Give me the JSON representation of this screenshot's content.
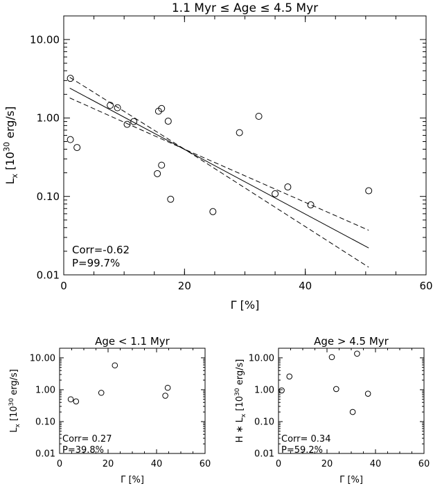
{
  "chart_data": [
    {
      "type": "scatter",
      "title": "1.1 Myr ≤ Age ≤ 4.5 Myr",
      "xlabel": "Γ [%]",
      "ylabel_main": "L",
      "ylabel_sub": "x",
      "ylabel_units_pre": "[10",
      "ylabel_units_sup": "30",
      "ylabel_units_post": " erg/s]",
      "xlim": [
        0,
        60
      ],
      "ylim": [
        0.01,
        20
      ],
      "yscale": "log",
      "xticks": [
        0,
        20,
        40,
        60
      ],
      "xtick_labels": [
        "0",
        "20",
        "40",
        "60"
      ],
      "yticks": [
        0.01,
        0.1,
        1,
        10
      ],
      "ytick_labels": [
        "0.01",
        "0.10",
        "1.00",
        "10.00"
      ],
      "annotations": [
        "Corr=-0.62",
        "P=99.7%"
      ],
      "fit_line": {
        "x": [
          1,
          50.5
        ],
        "y": [
          2.4,
          0.022
        ]
      },
      "fit_band_upper": {
        "x": [
          1,
          20,
          50.5
        ],
        "y": [
          3.3,
          0.4,
          0.037
        ]
      },
      "fit_band_lower": {
        "x": [
          1,
          20,
          50.5
        ],
        "y": [
          1.8,
          0.4,
          0.0125
        ]
      },
      "points": [
        {
          "x": 1.1,
          "y": 3.2
        },
        {
          "x": 1.1,
          "y": 0.53
        },
        {
          "x": 2.2,
          "y": 0.42
        },
        {
          "x": 7.7,
          "y": 1.45
        },
        {
          "x": 8.9,
          "y": 1.35
        },
        {
          "x": 10.5,
          "y": 0.83
        },
        {
          "x": 11.6,
          "y": 0.9
        },
        {
          "x": 15.5,
          "y": 0.195
        },
        {
          "x": 15.7,
          "y": 1.22
        },
        {
          "x": 16.2,
          "y": 1.32
        },
        {
          "x": 16.2,
          "y": 0.25
        },
        {
          "x": 17.3,
          "y": 0.91
        },
        {
          "x": 17.7,
          "y": 0.092
        },
        {
          "x": 24.7,
          "y": 0.064
        },
        {
          "x": 29.1,
          "y": 0.65
        },
        {
          "x": 32.3,
          "y": 1.05
        },
        {
          "x": 35.0,
          "y": 0.108
        },
        {
          "x": 37.1,
          "y": 0.132
        },
        {
          "x": 40.9,
          "y": 0.078
        },
        {
          "x": 50.5,
          "y": 0.118
        }
      ]
    },
    {
      "type": "scatter",
      "title": "Age < 1.1 Myr",
      "xlabel": "Γ [%]",
      "ylabel_main": "L",
      "ylabel_sub": "x",
      "ylabel_units_pre": "[10",
      "ylabel_units_sup": "30",
      "ylabel_units_post": " erg/s]",
      "xlim": [
        0,
        60
      ],
      "ylim": [
        0.01,
        20
      ],
      "yscale": "log",
      "xticks": [
        0,
        20,
        40,
        60
      ],
      "xtick_labels": [
        "0",
        "20",
        "40",
        "60"
      ],
      "yticks": [
        0.01,
        0.1,
        1,
        10
      ],
      "ytick_labels": [
        "0.01",
        "0.10",
        "1.00",
        "10.00"
      ],
      "annotations": [
        "Corr= 0.27",
        "P=39.8%"
      ],
      "points": [
        {
          "x": 4.6,
          "y": 0.5
        },
        {
          "x": 6.8,
          "y": 0.43
        },
        {
          "x": 17.2,
          "y": 0.8
        },
        {
          "x": 22.8,
          "y": 5.8
        },
        {
          "x": 43.6,
          "y": 0.65
        },
        {
          "x": 44.6,
          "y": 1.15
        }
      ]
    },
    {
      "type": "scatter",
      "title": "Age > 4.5 Myr",
      "xlabel": "Γ [%]",
      "ylabel_main": "H ∗ L",
      "ylabel_sub": "x",
      "ylabel_units_pre": "[10",
      "ylabel_units_sup": "30",
      "ylabel_units_post": " erg/s]",
      "xlim": [
        0,
        60
      ],
      "ylim": [
        0.01,
        20
      ],
      "yscale": "log",
      "xticks": [
        0,
        20,
        40,
        60
      ],
      "xtick_labels": [
        "0",
        "20",
        "40",
        "60"
      ],
      "yticks": [
        0.01,
        0.1,
        1,
        10
      ],
      "ytick_labels": [
        "0.01",
        "0.10",
        "1.00",
        "10.00"
      ],
      "annotations": [
        "Corr= 0.34",
        "P=59.2%"
      ],
      "points": [
        {
          "x": 1.3,
          "y": 0.95
        },
        {
          "x": 4.5,
          "y": 2.6
        },
        {
          "x": 22.0,
          "y": 10.5
        },
        {
          "x": 23.8,
          "y": 1.05
        },
        {
          "x": 30.6,
          "y": 0.2
        },
        {
          "x": 32.4,
          "y": 13.5
        },
        {
          "x": 36.9,
          "y": 0.75
        }
      ]
    }
  ]
}
